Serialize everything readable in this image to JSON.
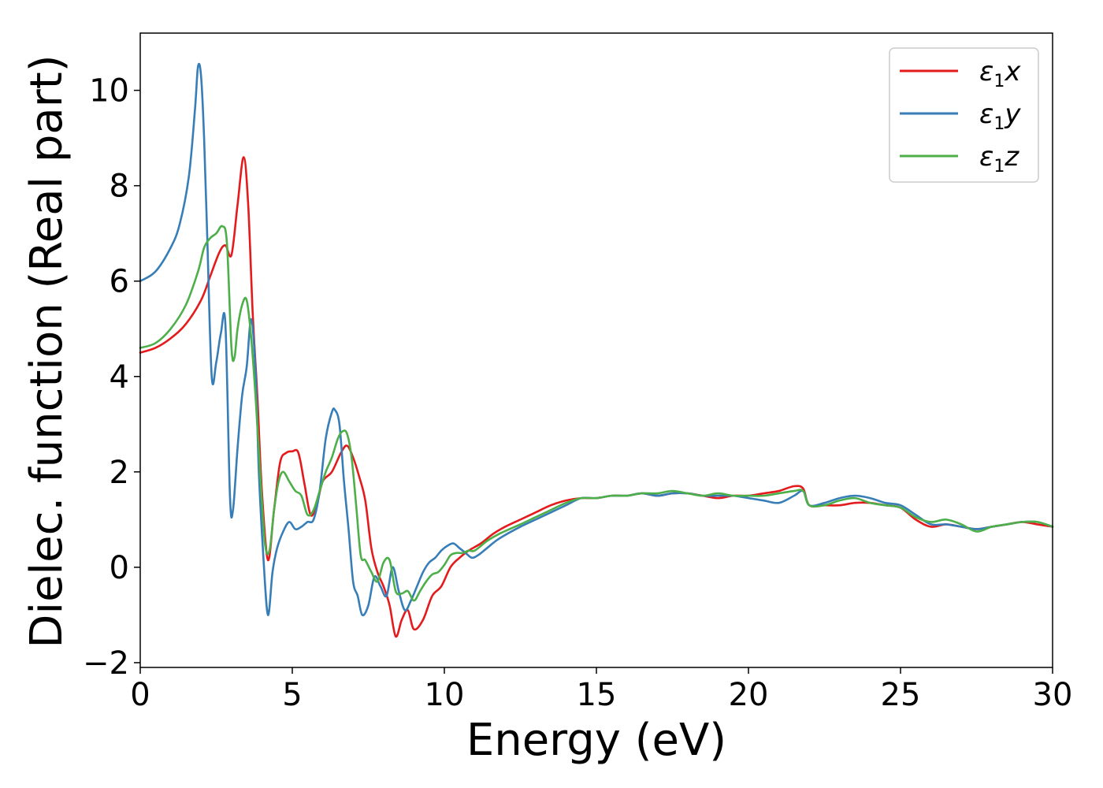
{
  "chart_data": {
    "type": "line",
    "title": "",
    "xlabel": "Energy (eV)",
    "ylabel": "Dielec. function (Real part)",
    "xlim": [
      0,
      30
    ],
    "ylim": [
      -2.1,
      11.2
    ],
    "xticks": [
      0,
      5,
      10,
      15,
      20,
      25,
      30
    ],
    "yticks": [
      -2,
      0,
      2,
      4,
      6,
      8,
      10
    ],
    "xtick_labels": [
      "0",
      "5",
      "10",
      "15",
      "20",
      "25",
      "30"
    ],
    "ytick_labels": [
      "−2",
      "0",
      "2",
      "4",
      "6",
      "8",
      "10"
    ],
    "grid": false,
    "legend_position": "top-right",
    "series": [
      {
        "name": "ε1x",
        "legend_base": "ε",
        "legend_sub": "1",
        "legend_tail": "x",
        "color": "#e41a1c",
        "x": [
          0,
          0.5,
          1.0,
          1.5,
          2.0,
          2.3,
          2.6,
          2.8,
          3.0,
          3.2,
          3.4,
          3.55,
          3.7,
          3.85,
          4.0,
          4.2,
          4.4,
          4.6,
          4.8,
          5.0,
          5.2,
          5.4,
          5.6,
          5.8,
          6.0,
          6.3,
          6.6,
          6.8,
          7.0,
          7.2,
          7.4,
          7.6,
          7.8,
          8.0,
          8.2,
          8.4,
          8.6,
          8.8,
          9.0,
          9.3,
          9.6,
          9.9,
          10.2,
          10.5,
          10.8,
          11.2,
          11.6,
          12.0,
          12.5,
          13.0,
          13.5,
          14.0,
          14.5,
          15.0,
          15.5,
          16.0,
          16.5,
          17.0,
          17.5,
          18.0,
          18.5,
          19.0,
          19.5,
          20.0,
          20.5,
          21.0,
          21.5,
          21.8,
          22.0,
          22.5,
          23.0,
          23.5,
          24.0,
          24.5,
          25.0,
          25.5,
          26.0,
          26.5,
          27.0,
          27.5,
          28.0,
          28.5,
          29.0,
          29.5,
          30.0
        ],
        "values": [
          4.5,
          4.6,
          4.8,
          5.1,
          5.6,
          6.1,
          6.6,
          6.75,
          6.55,
          7.6,
          8.6,
          7.6,
          5.3,
          3.6,
          1.6,
          0.15,
          1.2,
          2.2,
          2.4,
          2.43,
          2.4,
          1.75,
          1.1,
          1.3,
          1.8,
          2.0,
          2.4,
          2.55,
          2.3,
          1.9,
          1.4,
          0.4,
          -0.1,
          -0.4,
          -0.8,
          -1.45,
          -1.1,
          -0.9,
          -1.3,
          -1.1,
          -0.6,
          -0.4,
          0.0,
          0.2,
          0.35,
          0.5,
          0.7,
          0.85,
          1.0,
          1.15,
          1.3,
          1.4,
          1.45,
          1.45,
          1.5,
          1.5,
          1.55,
          1.5,
          1.55,
          1.55,
          1.5,
          1.45,
          1.5,
          1.5,
          1.55,
          1.6,
          1.7,
          1.65,
          1.3,
          1.3,
          1.3,
          1.35,
          1.35,
          1.3,
          1.25,
          1.0,
          0.85,
          0.9,
          0.85,
          0.8,
          0.85,
          0.9,
          0.95,
          0.9,
          0.85
        ]
      },
      {
        "name": "ε1y",
        "legend_base": "ε",
        "legend_sub": "1",
        "legend_tail": "y",
        "color": "#377eb8",
        "x": [
          0,
          0.5,
          1.0,
          1.3,
          1.6,
          1.8,
          1.9,
          2.0,
          2.1,
          2.2,
          2.35,
          2.5,
          2.65,
          2.8,
          2.95,
          3.05,
          3.2,
          3.35,
          3.5,
          3.65,
          3.8,
          3.9,
          4.05,
          4.2,
          4.35,
          4.5,
          4.7,
          4.9,
          5.1,
          5.3,
          5.5,
          5.7,
          5.9,
          6.1,
          6.3,
          6.4,
          6.55,
          6.7,
          6.85,
          7.0,
          7.15,
          7.3,
          7.5,
          7.7,
          7.9,
          8.1,
          8.3,
          8.5,
          8.7,
          8.9,
          9.1,
          9.3,
          9.5,
          9.7,
          9.9,
          10.1,
          10.3,
          10.5,
          10.7,
          10.9,
          11.1,
          11.4,
          11.8,
          12.5,
          13.0,
          13.5,
          14.0,
          14.5,
          15.0,
          15.5,
          16.0,
          16.5,
          17.0,
          17.5,
          18.0,
          18.5,
          19.0,
          19.5,
          20.0,
          20.5,
          21.0,
          21.5,
          21.8,
          22.0,
          22.5,
          23.0,
          23.5,
          24.0,
          24.5,
          25.0,
          25.5,
          26.0,
          26.5,
          27.0,
          27.5,
          28.0,
          28.5,
          29.0,
          29.5,
          30.0
        ],
        "values": [
          6.0,
          6.2,
          6.7,
          7.2,
          8.2,
          9.6,
          10.5,
          10.3,
          9.0,
          7.0,
          4.0,
          4.3,
          4.9,
          5.1,
          1.5,
          1.2,
          2.5,
          3.6,
          4.2,
          5.2,
          4.0,
          2.0,
          0.2,
          -1.0,
          -0.1,
          0.4,
          0.75,
          0.95,
          0.8,
          0.85,
          0.95,
          1.0,
          1.6,
          2.7,
          3.25,
          3.3,
          3.0,
          1.8,
          0.8,
          -0.3,
          -0.6,
          -1.0,
          -0.8,
          -0.2,
          -0.4,
          -0.6,
          0.0,
          -0.5,
          -0.9,
          -0.7,
          -0.4,
          -0.1,
          0.1,
          0.2,
          0.35,
          0.45,
          0.5,
          0.4,
          0.3,
          0.2,
          0.25,
          0.4,
          0.6,
          0.85,
          1.0,
          1.15,
          1.3,
          1.45,
          1.45,
          1.5,
          1.5,
          1.55,
          1.5,
          1.55,
          1.55,
          1.5,
          1.5,
          1.5,
          1.45,
          1.4,
          1.35,
          1.5,
          1.6,
          1.3,
          1.35,
          1.45,
          1.5,
          1.45,
          1.35,
          1.3,
          1.1,
          0.9,
          0.9,
          0.85,
          0.8,
          0.85,
          0.9,
          0.95,
          0.95,
          0.85
        ]
      },
      {
        "name": "ε1z",
        "legend_base": "ε",
        "legend_sub": "1",
        "legend_tail": "z",
        "color": "#4daf4a",
        "x": [
          0,
          0.5,
          1.0,
          1.5,
          1.9,
          2.1,
          2.3,
          2.5,
          2.7,
          2.85,
          3.0,
          3.1,
          3.2,
          3.35,
          3.5,
          3.65,
          3.8,
          3.95,
          4.1,
          4.25,
          4.4,
          4.55,
          4.7,
          4.9,
          5.1,
          5.3,
          5.5,
          5.7,
          5.9,
          6.1,
          6.3,
          6.5,
          6.65,
          6.8,
          6.95,
          7.1,
          7.25,
          7.4,
          7.6,
          7.8,
          8.0,
          8.2,
          8.4,
          8.6,
          8.8,
          9.0,
          9.2,
          9.4,
          9.6,
          9.8,
          10.0,
          10.2,
          10.4,
          10.6,
          10.8,
          11.0,
          11.4,
          11.8,
          12.5,
          13.0,
          13.5,
          14.0,
          14.5,
          15.0,
          15.5,
          16.0,
          16.5,
          17.0,
          17.5,
          18.0,
          18.5,
          19.0,
          19.5,
          20.0,
          20.5,
          21.0,
          21.5,
          21.8,
          22.0,
          22.5,
          23.0,
          23.5,
          24.0,
          24.5,
          25.0,
          25.5,
          26.0,
          26.5,
          27.0,
          27.5,
          28.0,
          28.5,
          29.0,
          29.5,
          30.0
        ],
        "values": [
          4.6,
          4.7,
          5.0,
          5.5,
          6.2,
          6.7,
          6.9,
          7.0,
          7.15,
          6.8,
          4.6,
          4.4,
          5.0,
          5.5,
          5.6,
          4.8,
          3.5,
          1.9,
          0.5,
          0.35,
          1.2,
          1.8,
          2.0,
          1.8,
          1.6,
          1.5,
          1.1,
          1.2,
          1.6,
          2.0,
          2.3,
          2.7,
          2.85,
          2.8,
          2.3,
          1.3,
          0.25,
          0.15,
          -0.1,
          -0.3,
          0.1,
          0.15,
          -0.5,
          -0.55,
          -0.5,
          -0.7,
          -0.5,
          -0.3,
          -0.15,
          -0.1,
          0.05,
          0.25,
          0.3,
          0.3,
          0.35,
          0.35,
          0.55,
          0.7,
          0.9,
          1.05,
          1.2,
          1.35,
          1.45,
          1.45,
          1.5,
          1.5,
          1.55,
          1.55,
          1.6,
          1.55,
          1.5,
          1.55,
          1.5,
          1.5,
          1.5,
          1.55,
          1.6,
          1.6,
          1.3,
          1.3,
          1.4,
          1.45,
          1.35,
          1.3,
          1.25,
          1.05,
          0.95,
          1.0,
          0.9,
          0.75,
          0.85,
          0.9,
          0.95,
          0.95,
          0.85
        ]
      }
    ]
  }
}
